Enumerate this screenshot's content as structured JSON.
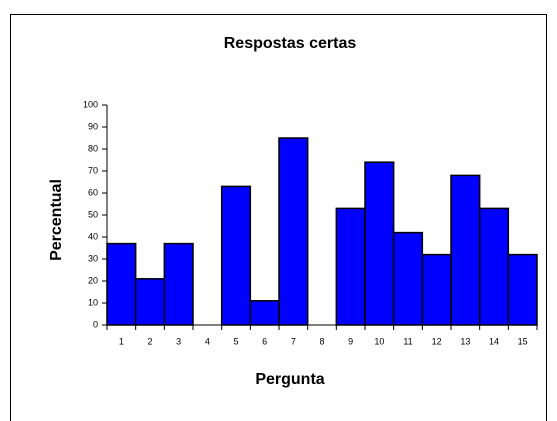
{
  "chart_data": {
    "type": "bar",
    "title": "Respostas certas",
    "x_label": "Pergunta",
    "y_label": "Percentual",
    "categories": [
      "1",
      "2",
      "3",
      "4",
      "5",
      "6",
      "7",
      "8",
      "9",
      "10",
      "11",
      "12",
      "13",
      "14",
      "15"
    ],
    "values": [
      37,
      21,
      37,
      0,
      63,
      11,
      85,
      0,
      53,
      74,
      42,
      32,
      68,
      53,
      32
    ],
    "color": "#0000ff",
    "ylim": [
      0,
      100
    ],
    "yticks": [
      0,
      10,
      20,
      30,
      40,
      50,
      60,
      70,
      80,
      90,
      100
    ],
    "grid": false
  }
}
